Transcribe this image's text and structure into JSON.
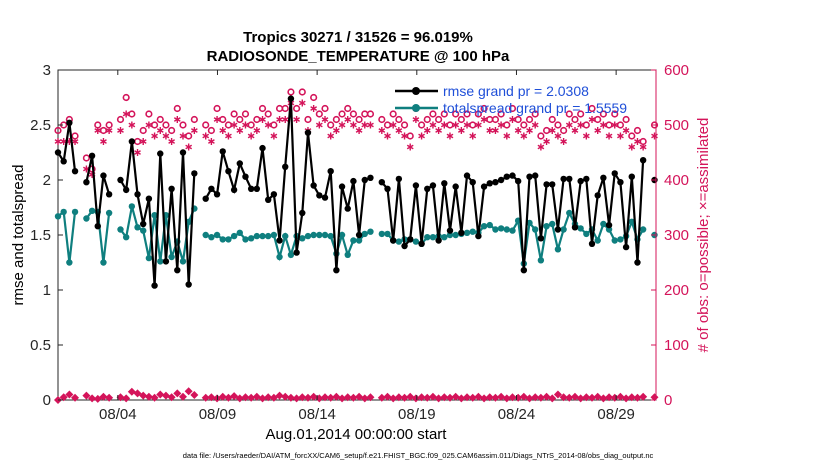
{
  "chart_data": {
    "type": "line",
    "title": "Tropics 30271 / 31526 = 96.019%",
    "subtitle": "RADIOSONDE_TEMPERATURE @ 100 hPa",
    "xlabel": "Aug.01,2014 00:00:00 start",
    "ylabel": "rmse and totalspread",
    "y2label": "# of obs: o=possible; ×=assimilated",
    "footnote": "data file: /Users/raeder/DAI/ATM_forcXX/CAM6_setup/f.e21.FHIST_BGC.f09_025.CAM6assim.011/Diags_NTrS_2014-08/obs_diag_output.nc",
    "x_ticks": [
      {
        "day": 4,
        "label": "08/04"
      },
      {
        "day": 9,
        "label": "08/09"
      },
      {
        "day": 14,
        "label": "08/14"
      },
      {
        "day": 19,
        "label": "08/19"
      },
      {
        "day": 24,
        "label": "08/24"
      },
      {
        "day": 29,
        "label": "08/29"
      }
    ],
    "xlim": [
      1,
      31
    ],
    "ylim": [
      0,
      3
    ],
    "y_ticks": [
      "0",
      "0.5",
      "1",
      "1.5",
      "2",
      "2.5",
      "3"
    ],
    "y2lim": [
      0,
      600
    ],
    "y2_ticks": [
      "0",
      "100",
      "200",
      "300",
      "400",
      "500",
      "600"
    ],
    "grid": false,
    "legend": [
      {
        "label": "rmse grand pr = 2.0308",
        "color": "#000000"
      },
      {
        "label": "totalspread grand pr = 1.5559",
        "color": "#0f7f7f"
      }
    ],
    "colors": {
      "rmse": "#000000",
      "spread": "#0f7f7f",
      "obs": "#d4145a"
    },
    "series": [
      {
        "name": "rmse",
        "axis": "left",
        "values": [
          2.25,
          2.17,
          2.52,
          2.08,
          null,
          1.98,
          2.22,
          1.58,
          2.04,
          1.87,
          null,
          2.0,
          1.91,
          2.35,
          1.87,
          1.6,
          1.83,
          1.04,
          2.24,
          1.26,
          1.92,
          1.18,
          2.25,
          1.05,
          2.06,
          null,
          1.83,
          1.92,
          1.87,
          2.26,
          2.08,
          1.91,
          2.15,
          2.03,
          1.92,
          1.92,
          2.29,
          1.82,
          1.87,
          1.45,
          2.12,
          2.74,
          1.34,
          1.7,
          2.43,
          1.95,
          1.86,
          1.84,
          2.08,
          1.18,
          1.94,
          1.74,
          1.99,
          1.5,
          2.0,
          2.02,
          null,
          1.98,
          1.92,
          1.45,
          2.01,
          1.4,
          1.46,
          1.95,
          1.42,
          1.92,
          1.95,
          1.45,
          1.97,
          1.54,
          1.94,
          1.52,
          2.04,
          1.98,
          1.49,
          1.94,
          1.97,
          1.98,
          2.0,
          2.03,
          2.04,
          1.99,
          1.18,
          2.03,
          2.04,
          1.47,
          1.96,
          1.96,
          1.55,
          2.01,
          2.01,
          1.57,
          1.99,
          2.01,
          1.42,
          1.86,
          2.02,
          1.59,
          2.06,
          1.98,
          1.39,
          2.03,
          1.25,
          2.18,
          null,
          2.0
        ]
      },
      {
        "name": "totalspread",
        "axis": "left",
        "values": [
          1.67,
          1.71,
          1.25,
          1.71,
          null,
          1.65,
          1.72,
          1.71,
          1.25,
          1.7,
          null,
          1.55,
          1.48,
          1.76,
          1.57,
          1.54,
          1.29,
          1.68,
          1.26,
          1.68,
          1.3,
          1.44,
          1.26,
          1.62,
          1.74,
          null,
          1.5,
          1.48,
          1.5,
          1.46,
          1.46,
          1.49,
          1.52,
          1.46,
          1.47,
          1.49,
          1.49,
          1.49,
          1.5,
          1.3,
          1.49,
          1.32,
          1.49,
          1.47,
          1.49,
          1.5,
          1.5,
          1.5,
          1.49,
          1.33,
          1.5,
          1.32,
          1.45,
          1.45,
          1.51,
          1.53,
          null,
          1.51,
          1.51,
          1.45,
          1.44,
          1.46,
          1.46,
          1.44,
          1.42,
          1.48,
          1.48,
          1.49,
          1.48,
          1.5,
          1.5,
          1.51,
          1.52,
          1.53,
          1.52,
          1.58,
          1.59,
          1.55,
          1.56,
          1.55,
          1.54,
          1.63,
          1.24,
          1.61,
          1.55,
          1.27,
          1.58,
          1.6,
          1.37,
          1.55,
          1.7,
          1.6,
          1.56,
          1.51,
          1.55,
          1.45,
          1.6,
          1.55,
          1.45,
          1.46,
          1.49,
          1.62,
          1.46,
          1.55,
          null,
          1.5
        ]
      },
      {
        "name": "obs possible",
        "axis": "right",
        "values": [
          490,
          500,
          510,
          480,
          null,
          440,
          420,
          500,
          490,
          500,
          null,
          510,
          550,
          520,
          470,
          490,
          520,
          500,
          510,
          500,
          490,
          530,
          500,
          480,
          510,
          null,
          500,
          490,
          530,
          510,
          500,
          520,
          510,
          520,
          500,
          510,
          530,
          520,
          500,
          530,
          530,
          560,
          530,
          560,
          510,
          550,
          520,
          530,
          500,
          510,
          520,
          530,
          520,
          510,
          520,
          520,
          null,
          510,
          500,
          520,
          510,
          500,
          480,
          530,
          500,
          510,
          520,
          510,
          520,
          500,
          520,
          510,
          520,
          500,
          520,
          530,
          510,
          510,
          520,
          500,
          530,
          510,
          500,
          510,
          520,
          480,
          490,
          510,
          500,
          490,
          520,
          510,
          520,
          500,
          530,
          510,
          520,
          500,
          520,
          500,
          510,
          480,
          490,
          470,
          null,
          500
        ]
      },
      {
        "name": "obs assimilated",
        "axis": "right",
        "values": [
          470,
          470,
          470,
          470,
          null,
          420,
          410,
          490,
          470,
          490,
          null,
          490,
          520,
          500,
          450,
          470,
          500,
          480,
          490,
          480,
          470,
          510,
          480,
          460,
          490,
          null,
          480,
          470,
          510,
          490,
          480,
          500,
          490,
          500,
          480,
          490,
          510,
          500,
          480,
          510,
          510,
          540,
          510,
          540,
          490,
          530,
          500,
          510,
          480,
          490,
          500,
          510,
          500,
          490,
          500,
          500,
          null,
          490,
          480,
          500,
          490,
          480,
          460,
          510,
          480,
          490,
          500,
          490,
          500,
          480,
          500,
          490,
          500,
          480,
          500,
          510,
          490,
          490,
          500,
          480,
          510,
          490,
          480,
          490,
          500,
          460,
          470,
          490,
          480,
          470,
          500,
          490,
          500,
          480,
          510,
          490,
          500,
          480,
          500,
          480,
          490,
          460,
          470,
          460,
          null,
          480
        ]
      },
      {
        "name": "obs rejected",
        "axis": "right",
        "values": [
          0,
          5,
          10,
          4,
          null,
          8,
          3,
          2,
          6,
          4,
          null,
          5,
          3,
          15,
          12,
          8,
          6,
          4,
          10,
          8,
          5,
          12,
          6,
          16,
          9,
          null,
          4,
          5,
          3,
          6,
          4,
          7,
          3,
          5,
          4,
          6,
          3,
          5,
          4,
          8,
          6,
          4,
          3,
          5,
          4,
          6,
          3,
          5,
          4,
          6,
          3,
          5,
          4,
          6,
          3,
          5,
          null,
          4,
          6,
          3,
          5,
          4,
          6,
          3,
          5,
          4,
          6,
          3,
          5,
          4,
          6,
          3,
          5,
          4,
          6,
          3,
          5,
          4,
          6,
          3,
          5,
          4,
          6,
          3,
          5,
          4,
          6,
          3,
          10,
          5,
          4,
          6,
          3,
          5,
          4,
          6,
          3,
          5,
          4,
          6,
          3,
          5,
          4,
          6,
          null,
          5
        ]
      }
    ]
  }
}
